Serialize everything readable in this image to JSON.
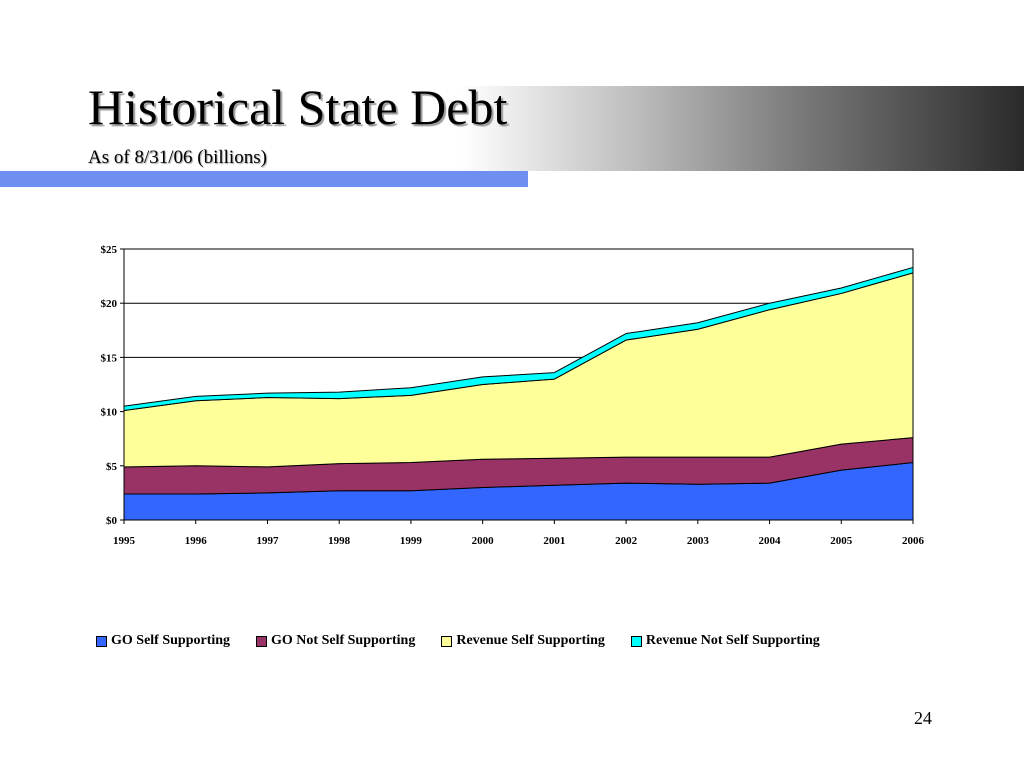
{
  "slide": {
    "title": "Historical State Debt",
    "subtitle": "As of 8/31/06 (billions)",
    "page_number": "24"
  },
  "chart_data": {
    "type": "area",
    "stacked": true,
    "x": [
      "1995",
      "1996",
      "1997",
      "1998",
      "1999",
      "2000",
      "2001",
      "2002",
      "2003",
      "2004",
      "2005",
      "2006"
    ],
    "ylim": [
      0,
      25
    ],
    "yticks": [
      0,
      5,
      10,
      15,
      20,
      25
    ],
    "ytick_labels": [
      "$0",
      "$5",
      "$10",
      "$15",
      "$20",
      "$25"
    ],
    "grid": true,
    "legend_position": "bottom",
    "series": [
      {
        "name": "GO Self Supporting",
        "color": "#3366ff",
        "values": [
          2.4,
          2.4,
          2.5,
          2.7,
          2.7,
          3.0,
          3.2,
          3.4,
          3.3,
          3.4,
          4.6,
          5.3
        ]
      },
      {
        "name": "GO Not Self Supporting",
        "color": "#993366",
        "values": [
          2.5,
          2.6,
          2.4,
          2.5,
          2.6,
          2.6,
          2.5,
          2.4,
          2.5,
          2.4,
          2.4,
          2.3
        ]
      },
      {
        "name": "Revenue Self Supporting",
        "color": "#ffff99",
        "values": [
          5.2,
          6.0,
          6.4,
          6.0,
          6.2,
          6.9,
          7.3,
          10.8,
          11.8,
          13.6,
          13.9,
          15.2
        ]
      },
      {
        "name": "Revenue Not Self Supporting",
        "color": "#00ffff",
        "values": [
          0.4,
          0.4,
          0.4,
          0.6,
          0.7,
          0.7,
          0.6,
          0.6,
          0.6,
          0.6,
          0.5,
          0.5
        ]
      }
    ]
  }
}
